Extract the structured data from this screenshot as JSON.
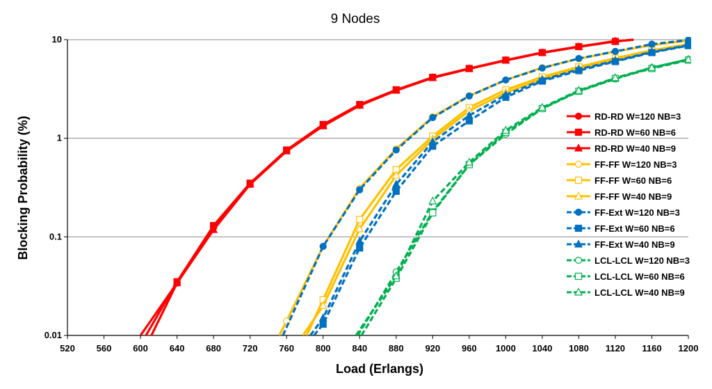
{
  "chart_data": {
    "type": "line",
    "title": "9 Nodes",
    "xlabel": "Load (Erlangs)",
    "ylabel": "Blocking Probability (%)",
    "xlim": [
      520,
      1200
    ],
    "ylim": [
      0.01,
      10
    ],
    "y_scale": "log",
    "x_ticks": [
      520,
      560,
      600,
      640,
      680,
      720,
      760,
      800,
      840,
      880,
      920,
      960,
      1000,
      1040,
      1080,
      1120,
      1160,
      1200
    ],
    "y_ticks": [
      0.01,
      0.1,
      1,
      10
    ],
    "y_tick_labels": [
      "0.01",
      "0.1",
      "1",
      "10"
    ],
    "grid": "horizontal",
    "legend_position": "right",
    "colors": {
      "red": "#ff0000",
      "orange": "#ffc000",
      "blue": "#0070c0",
      "green": "#00b050"
    },
    "series": [
      {
        "name": "RD-RD W=120 NB=3",
        "color": "#ff0000",
        "marker": "circle",
        "filled": true,
        "dashed": false,
        "x": [
          600,
          640,
          680,
          720,
          760,
          800,
          840,
          880,
          920,
          960,
          1000,
          1040,
          1080,
          1120
        ],
        "y": [
          0.01,
          0.034,
          0.125,
          0.34,
          0.75,
          1.35,
          2.15,
          3.1,
          4.15,
          5.1,
          6.2,
          7.4,
          8.5,
          9.7
        ]
      },
      {
        "name": "RD-RD W=60 NB=6",
        "color": "#ff0000",
        "marker": "square",
        "filled": true,
        "dashed": false,
        "x": [
          606,
          640,
          680,
          720,
          760,
          800,
          840,
          880,
          920,
          960,
          1000,
          1040,
          1080,
          1120,
          1140
        ],
        "y": [
          0.01,
          0.035,
          0.13,
          0.35,
          0.76,
          1.38,
          2.2,
          3.1,
          4.15,
          5.1,
          6.2,
          7.4,
          8.5,
          9.6,
          10
        ]
      },
      {
        "name": "RD-RD W=40 NB=9",
        "color": "#ff0000",
        "marker": "triangle",
        "filled": true,
        "dashed": false,
        "x": [
          612,
          640,
          680,
          720,
          760,
          800,
          840,
          880,
          920,
          960,
          1000,
          1040,
          1080,
          1120,
          1140
        ],
        "y": [
          0.01,
          0.034,
          0.118,
          0.34,
          0.74,
          1.33,
          2.15,
          3.05,
          4.1,
          5.05,
          6.15,
          7.35,
          8.45,
          9.6,
          10
        ]
      },
      {
        "name": "FF-FF W=120 NB=3",
        "color": "#ffc000",
        "marker": "circle",
        "filled": false,
        "dashed": false,
        "x": [
          752,
          760,
          800,
          840,
          880,
          920,
          960,
          1000,
          1040,
          1080,
          1120,
          1160,
          1200
        ],
        "y": [
          0.01,
          0.014,
          0.08,
          0.31,
          0.78,
          1.65,
          2.7,
          3.9,
          5.2,
          6.4,
          7.6,
          8.8,
          9.8
        ]
      },
      {
        "name": "FF-FF W=60 NB=6",
        "color": "#ffc000",
        "marker": "square",
        "filled": false,
        "dashed": false,
        "x": [
          782,
          800,
          840,
          880,
          920,
          960,
          1000,
          1040,
          1080,
          1120,
          1160,
          1200
        ],
        "y": [
          0.01,
          0.023,
          0.15,
          0.48,
          1.05,
          2.05,
          3.1,
          4.2,
          5.3,
          6.5,
          7.8,
          9.0
        ]
      },
      {
        "name": "FF-FF W=40 NB=9",
        "color": "#ffc000",
        "marker": "triangle",
        "filled": false,
        "dashed": false,
        "x": [
          778,
          800,
          840,
          880,
          920,
          960,
          1000,
          1040,
          1080,
          1120,
          1160,
          1200
        ],
        "y": [
          0.01,
          0.02,
          0.12,
          0.42,
          0.98,
          1.9,
          2.9,
          4.0,
          5.1,
          6.3,
          7.6,
          8.8
        ]
      },
      {
        "name": "FF-Ext W=120 NB=3",
        "color": "#0070c0",
        "marker": "circle",
        "filled": true,
        "dashed": true,
        "x": [
          756,
          800,
          840,
          880,
          920,
          960,
          1000,
          1040,
          1080,
          1120,
          1160,
          1200
        ],
        "y": [
          0.01,
          0.08,
          0.3,
          0.76,
          1.62,
          2.68,
          3.9,
          5.15,
          6.45,
          7.6,
          9.0,
          9.9
        ]
      },
      {
        "name": "FF-Ext W=60 NB=6",
        "color": "#0070c0",
        "marker": "square",
        "filled": true,
        "dashed": true,
        "x": [
          790,
          800,
          840,
          880,
          920,
          960,
          1000,
          1040,
          1080,
          1120,
          1160,
          1200
        ],
        "y": [
          0.01,
          0.013,
          0.077,
          0.29,
          0.83,
          1.5,
          2.6,
          3.8,
          4.85,
          6.0,
          7.4,
          8.7
        ]
      },
      {
        "name": "FF-Ext W=40 NB=9",
        "color": "#0070c0",
        "marker": "triangle",
        "filled": true,
        "dashed": true,
        "x": [
          786,
          800,
          840,
          880,
          920,
          960,
          1000,
          1040,
          1080,
          1120,
          1160,
          1200
        ],
        "y": [
          0.01,
          0.015,
          0.09,
          0.34,
          0.92,
          1.7,
          2.75,
          3.9,
          5.0,
          6.1,
          7.5,
          8.8
        ]
      },
      {
        "name": "LCL-LCL W=120 NB=3",
        "color": "#00b050",
        "marker": "circle",
        "filled": false,
        "dashed": true,
        "x": [
          838,
          880,
          920,
          960,
          1000,
          1040,
          1080,
          1120,
          1160,
          1200
        ],
        "y": [
          0.01,
          0.044,
          0.18,
          0.54,
          1.1,
          2.0,
          3.0,
          4.0,
          5.2,
          6.3
        ]
      },
      {
        "name": "LCL-LCL W=60 NB=6",
        "color": "#00b050",
        "marker": "square",
        "filled": false,
        "dashed": true,
        "x": [
          842,
          880,
          920,
          960,
          1000,
          1040,
          1080,
          1120,
          1160,
          1200
        ],
        "y": [
          0.01,
          0.038,
          0.175,
          0.54,
          1.15,
          2.0,
          3.0,
          4.05,
          5.1,
          6.2
        ]
      },
      {
        "name": "LCL-LCL W=40 NB=9",
        "color": "#00b050",
        "marker": "triangle",
        "filled": false,
        "dashed": true,
        "x": [
          836,
          880,
          920,
          960,
          1000,
          1040,
          1080,
          1120,
          1160,
          1200
        ],
        "y": [
          0.01,
          0.04,
          0.23,
          0.57,
          1.2,
          2.05,
          3.05,
          4.1,
          5.2,
          6.3
        ]
      }
    ]
  }
}
